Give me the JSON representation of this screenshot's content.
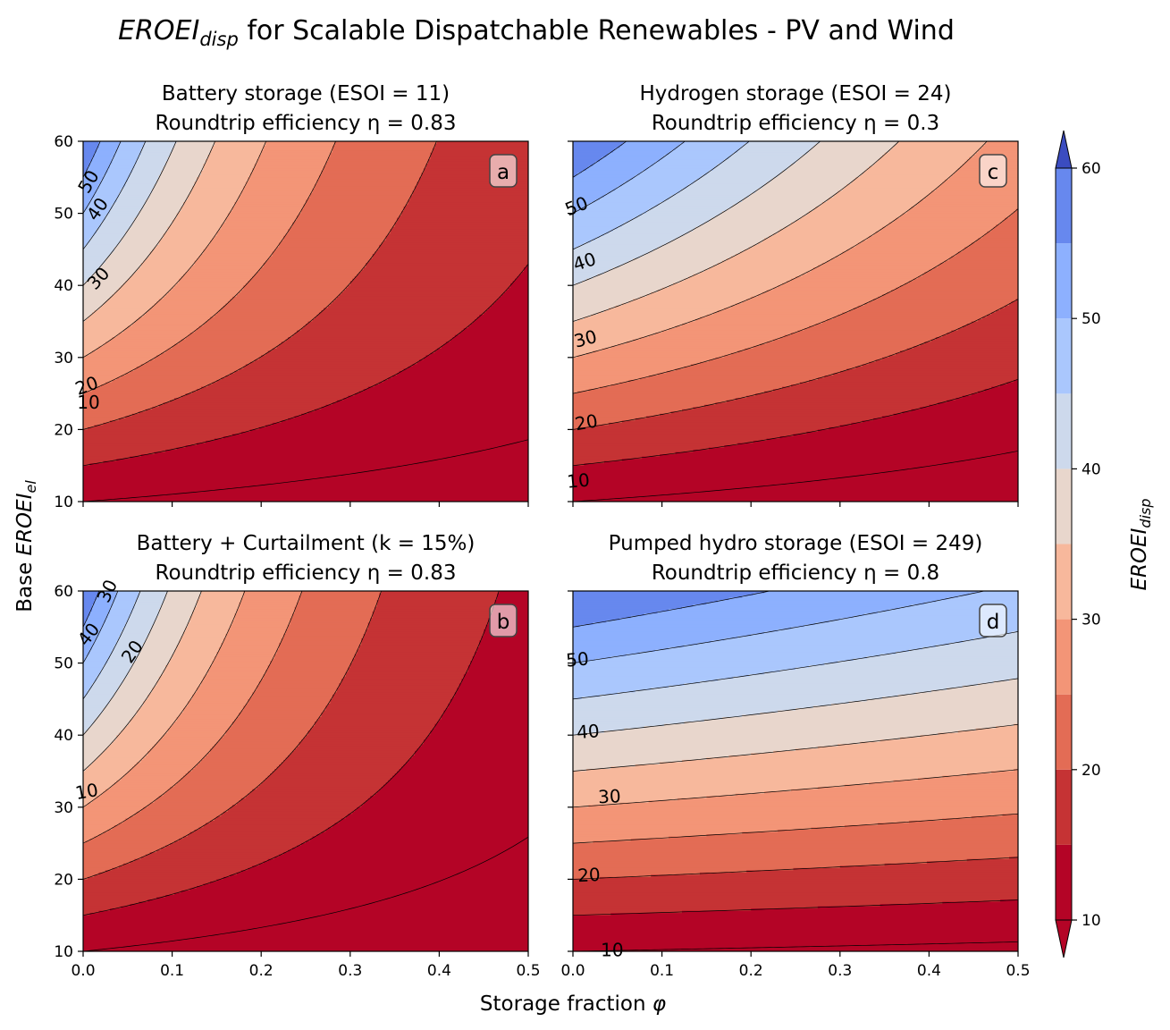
{
  "figure": {
    "title_main": "EROEI",
    "title_sub": "disp",
    "title_rest": " for Scalable Dispatchable Renewables - PV and Wind",
    "xlabel_text": "Storage fraction ",
    "xlabel_symbol": "φ",
    "ylabel_prefix": "Base ",
    "ylabel_main": "EROEI",
    "ylabel_sub": "el"
  },
  "colorbar": {
    "label_main": "EROEI",
    "label_sub": "disp",
    "ticks": [
      "10",
      "20",
      "30",
      "40",
      "50",
      "60"
    ],
    "range": [
      10,
      60
    ],
    "levels": [
      10,
      15,
      20,
      25,
      30,
      35,
      40,
      45,
      50,
      55,
      60
    ],
    "extend": "both"
  },
  "colors": {
    "bands": [
      "#b40426",
      "#c53334",
      "#e36c55",
      "#f39577",
      "#f7b89c",
      "#e8d6cc",
      "#cdd9ec",
      "#aac7fd",
      "#8db0fe",
      "#6788ee",
      "#3b4cc0"
    ],
    "under": "#b40426",
    "over": "#3b4cc0"
  },
  "chart_data": [
    {
      "type": "contour",
      "panel": "a",
      "title_line1": "Battery storage (ESOI = 11)",
      "title_line2": "Roundtrip efficiency η = 0.83",
      "storage": "battery",
      "esoi": 11,
      "eta": 0.83,
      "x": {
        "ticks": [
          "0.0",
          "0.1",
          "0.2",
          "0.3",
          "0.4",
          "0.5"
        ],
        "range": [
          0,
          0.5
        ]
      },
      "y": {
        "ticks": [
          "10",
          "20",
          "30",
          "40",
          "50",
          "60"
        ],
        "range": [
          10,
          60
        ]
      },
      "contour_labels": [
        {
          "text": "50",
          "x": 0.006,
          "y": 54.4,
          "rot": -60
        },
        {
          "text": "40",
          "x": 0.016,
          "y": 50.6,
          "rot": -55
        },
        {
          "text": "30",
          "x": 0.017,
          "y": 41.0,
          "rot": -48
        },
        {
          "text": "20",
          "x": 0.004,
          "y": 26.1,
          "rot": -20
        },
        {
          "text": "10",
          "x": 0.006,
          "y": 23.8,
          "rot": 0
        }
      ]
    },
    {
      "type": "contour",
      "panel": "b",
      "title_line1": "Battery + Curtailment (k = 15%)",
      "title_line2": "Roundtrip efficiency η = 0.83",
      "storage": "battery_curtailment",
      "esoi": 11,
      "eta": 0.83,
      "curtailment_pct": 15,
      "x": {
        "ticks": [
          "0.0",
          "0.1",
          "0.2",
          "0.3",
          "0.4",
          "0.5"
        ],
        "range": [
          0,
          0.5
        ]
      },
      "y": {
        "ticks": [
          "10",
          "20",
          "30",
          "40",
          "50",
          "60"
        ],
        "range": [
          10,
          60
        ]
      },
      "contour_labels": [
        {
          "text": "40",
          "x": 0.006,
          "y": 54.0,
          "rot": -52
        },
        {
          "text": "30",
          "x": 0.027,
          "y": 60.0,
          "rot": -65
        },
        {
          "text": "20",
          "x": 0.055,
          "y": 51.6,
          "rot": -55
        },
        {
          "text": "10",
          "x": 0.004,
          "y": 32.2,
          "rot": -10
        }
      ]
    },
    {
      "type": "contour",
      "panel": "c",
      "title_line1": "Hydrogen storage (ESOI = 24)",
      "title_line2": "Roundtrip efficiency η = 0.3",
      "storage": "hydrogen",
      "esoi": 24,
      "eta": 0.3,
      "x": {
        "ticks": [
          "0.0",
          "0.1",
          "0.2",
          "0.3",
          "0.4",
          "0.5"
        ],
        "range": [
          0,
          0.5
        ]
      },
      "y": {
        "ticks": [
          "10",
          "20",
          "30",
          "40",
          "50",
          "60"
        ],
        "range": [
          10,
          60
        ]
      },
      "contour_labels": [
        {
          "text": "50",
          "x": 0.004,
          "y": 51.0,
          "rot": -22
        },
        {
          "text": "40",
          "x": 0.013,
          "y": 43.3,
          "rot": -18
        },
        {
          "text": "30",
          "x": 0.014,
          "y": 32.6,
          "rot": -15
        },
        {
          "text": "20",
          "x": 0.015,
          "y": 21.0,
          "rot": -10
        },
        {
          "text": "10",
          "x": 0.006,
          "y": 12.9,
          "rot": -5
        }
      ]
    },
    {
      "type": "contour",
      "panel": "d",
      "title_line1": "Pumped hydro storage (ESOI = 249)",
      "title_line2": "Roundtrip efficiency η = 0.8",
      "storage": "pumped_hydro",
      "esoi": 249,
      "eta": 0.8,
      "x": {
        "ticks": [
          "0.0",
          "0.1",
          "0.2",
          "0.3",
          "0.4",
          "0.5"
        ],
        "range": [
          0,
          0.5
        ]
      },
      "y": {
        "ticks": [
          "10",
          "20",
          "30",
          "40",
          "50",
          "60"
        ],
        "range": [
          10,
          60
        ]
      },
      "contour_labels": [
        {
          "text": "50",
          "x": 0.005,
          "y": 50.5,
          "rot": -5
        },
        {
          "text": "40",
          "x": 0.017,
          "y": 40.5,
          "rot": -4
        },
        {
          "text": "30",
          "x": 0.041,
          "y": 31.5,
          "rot": -3
        },
        {
          "text": "20",
          "x": 0.018,
          "y": 20.6,
          "rot": -3
        },
        {
          "text": "10",
          "x": 0.044,
          "y": 10.2,
          "rot": 0
        }
      ]
    }
  ]
}
